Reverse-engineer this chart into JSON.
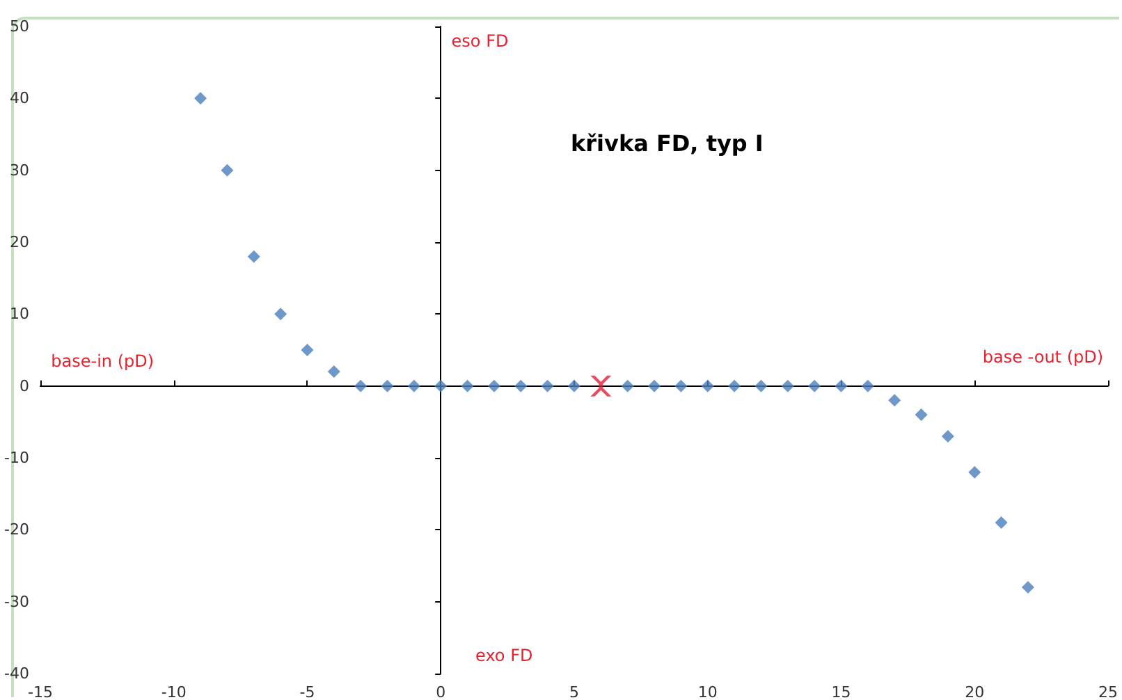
{
  "chart_data": {
    "type": "scatter",
    "title": "křivka FD, typ I",
    "series": [
      {
        "color": "#4a7ebb",
        "x": [
          -9,
          -8,
          -7,
          -6,
          -5,
          -4,
          -3,
          -2,
          -1,
          0,
          1,
          2,
          3,
          4,
          5,
          7,
          8,
          9,
          10,
          11,
          12,
          13,
          14,
          15,
          16,
          17,
          18,
          19,
          20,
          21,
          22
        ],
        "values": [
          40,
          30,
          18,
          10,
          5,
          2,
          0,
          0,
          0,
          0,
          0,
          0,
          0,
          0,
          0,
          0,
          0,
          0,
          0,
          0,
          0,
          0,
          0,
          0,
          0,
          -2,
          -4,
          -7,
          -12,
          -19,
          -28
        ],
        "marker": "diamond"
      },
      {
        "color": "#e0203a",
        "x": [
          6
        ],
        "values": [
          0
        ],
        "marker": "cross"
      }
    ],
    "xlim": [
      -15,
      25
    ],
    "xticks": [
      -15,
      -10,
      -5,
      0,
      5,
      10,
      15,
      20,
      25
    ],
    "ylim": [
      -40,
      50
    ],
    "yticks": [
      -40,
      -30,
      -20,
      -10,
      0,
      10,
      20,
      30,
      40,
      50
    ],
    "annotations": [
      "eso FD",
      "exo FD",
      "base-in (pD)",
      "base -out (pD)"
    ]
  }
}
